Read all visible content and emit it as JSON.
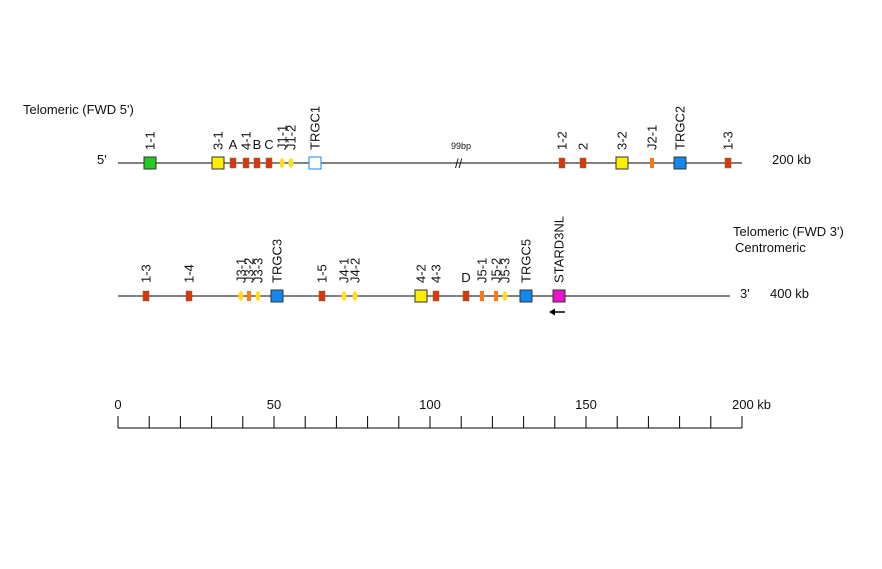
{
  "row1": {
    "heading": "Telomeric (FWD 5')",
    "end_left": "5'",
    "end_right": "200 kb",
    "gap_note": "99bp",
    "genes": [
      "1-1",
      "3-1",
      "A",
      "4-1",
      "B",
      "C",
      "J1-1",
      "J1-2",
      "TRGC1",
      "1-2",
      "2",
      "3-2",
      "J2-1",
      "TRGC2",
      "1-3"
    ]
  },
  "row2": {
    "heading": "Telomeric (FWD 3')",
    "subheading": "Centromeric",
    "end_right_mark": "3'",
    "end_right": "400 kb",
    "genes": [
      "1-3",
      "1-4",
      "J3-1",
      "J3-2",
      "J3-3",
      "TRGC3",
      "1-5",
      "J4-1",
      "J4-2",
      "4-2",
      "4-3",
      "D",
      "J5-1",
      "J5-2",
      "J5-3",
      "TRGC5",
      "STARD3NL"
    ]
  },
  "scale": {
    "labels": [
      "0",
      "50",
      "100",
      "150",
      "200 kb"
    ]
  }
}
